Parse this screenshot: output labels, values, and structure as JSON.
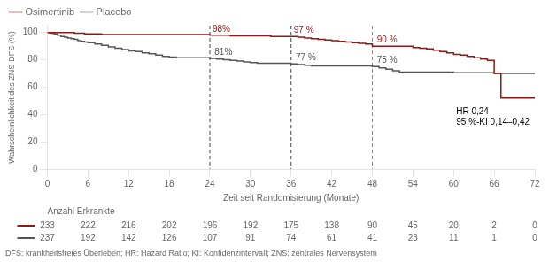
{
  "chart_data": {
    "type": "step",
    "xlabel": "Zeit seit Randomisierung (Monate)",
    "ylabel": "Wahrscheinlichkeit des ZNS-DFS (%)",
    "xlim": [
      0,
      72
    ],
    "ylim": [
      0,
      105
    ],
    "xticks": [
      0,
      6,
      12,
      18,
      24,
      30,
      36,
      42,
      48,
      54,
      60,
      66,
      72
    ],
    "yticks": [
      0,
      20,
      40,
      60,
      80,
      100
    ],
    "grid": false,
    "legend": "upper left",
    "series": [
      {
        "name": "Osimertinib",
        "color": "#8b1a1a",
        "x": [
          0,
          0.5,
          1,
          1.5,
          2,
          2.5,
          3,
          3.5,
          4,
          4.5,
          5,
          5.5,
          6,
          7,
          8,
          9,
          10,
          11,
          12,
          13,
          14,
          15,
          16,
          17,
          18,
          19,
          20,
          21,
          22,
          23,
          24,
          25,
          26,
          27,
          28,
          29,
          30,
          31,
          32,
          33,
          34,
          35,
          36,
          37,
          38,
          39,
          40,
          41,
          42,
          43,
          44,
          45,
          46,
          47,
          48,
          49,
          50,
          51,
          52,
          53,
          54,
          55,
          56,
          57,
          58,
          59,
          60,
          61,
          62,
          63,
          64,
          65,
          66,
          67,
          72
        ],
        "values": [
          100,
          100,
          100,
          100,
          100,
          100,
          100,
          100,
          99.5,
          99.5,
          99.5,
          99.0,
          99.0,
          99.0,
          98.5,
          98.5,
          98.5,
          98.5,
          98.5,
          98.5,
          98.5,
          98.5,
          98.5,
          98.5,
          98.5,
          98.5,
          98.5,
          98.5,
          98.5,
          98.5,
          98.0,
          98.0,
          98.0,
          97.5,
          97.5,
          97.5,
          97.5,
          97.5,
          97.5,
          97.0,
          97.0,
          97.0,
          97.0,
          96.5,
          96.0,
          95.5,
          95.0,
          94.5,
          94.0,
          93.5,
          93.0,
          92.5,
          92.0,
          91.5,
          90.0,
          90.0,
          90.0,
          90.0,
          90.0,
          90.0,
          89.0,
          88.5,
          88.0,
          87.0,
          86.0,
          85.0,
          84.0,
          83.5,
          82.5,
          81.5,
          80.5,
          79.5,
          70.0,
          52.0,
          52.0
        ]
      },
      {
        "name": "Placebo",
        "color": "#555555",
        "x": [
          0,
          0.5,
          1,
          1.5,
          2,
          2.5,
          3,
          3.5,
          4,
          4.5,
          5,
          5.5,
          6,
          7,
          8,
          9,
          10,
          11,
          12,
          13,
          14,
          15,
          16,
          17,
          18,
          19,
          20,
          21,
          22,
          23,
          24,
          25,
          26,
          27,
          28,
          29,
          30,
          31,
          32,
          33,
          34,
          35,
          36,
          37,
          38,
          39,
          40,
          41,
          42,
          43,
          44,
          45,
          46,
          47,
          48,
          49,
          50,
          51,
          52,
          53,
          54,
          55,
          56,
          57,
          58,
          59,
          60,
          61,
          62,
          63,
          64,
          65,
          66,
          72
        ],
        "values": [
          100,
          99.5,
          99.0,
          98.0,
          97.0,
          96.5,
          96.0,
          95.5,
          95.0,
          94.0,
          93.5,
          93.0,
          92.5,
          91.5,
          90.5,
          89.5,
          88.5,
          87.5,
          86.5,
          86.0,
          85.0,
          84.5,
          83.5,
          82.5,
          82.0,
          81.5,
          81.5,
          81.5,
          81.5,
          81.5,
          81.0,
          80.5,
          80.0,
          79.5,
          79.0,
          78.5,
          78.0,
          77.5,
          77.5,
          77.5,
          77.5,
          77.5,
          77.0,
          76.5,
          76.0,
          75.5,
          75.5,
          75.5,
          75.5,
          75.5,
          75.5,
          75.5,
          75.5,
          75.5,
          75.0,
          74.0,
          73.0,
          72.0,
          71.0,
          71.0,
          71.0,
          71.0,
          71.0,
          71.0,
          71.0,
          71.0,
          70.5,
          70.5,
          70.5,
          70.5,
          70.5,
          70.5,
          70.0,
          70.0
        ]
      }
    ],
    "vlines": [
      {
        "x": 24,
        "color": "#444444"
      },
      {
        "x": 36,
        "color": "#444444"
      },
      {
        "x": 48,
        "color": "#888888"
      }
    ],
    "annotations": [
      {
        "x": 24,
        "y": 98.5,
        "text": "98%",
        "color": "#8b1a1a"
      },
      {
        "x": 24.3,
        "y": 81.5,
        "text": "81%",
        "color": "#555555"
      },
      {
        "x": 36,
        "y": 97.5,
        "text": "97 %",
        "color": "#8b1a1a"
      },
      {
        "x": 36.3,
        "y": 77.5,
        "text": "77 %",
        "color": "#555555"
      },
      {
        "x": 48.3,
        "y": 90.5,
        "text": "90 %",
        "color": "#8b1a1a"
      },
      {
        "x": 48.3,
        "y": 75.5,
        "text": "75 %",
        "color": "#555555"
      },
      {
        "x": 60,
        "y": 30,
        "text": "HR 0,24\n95 %-KI 0,14–0,42",
        "color": "#000000"
      }
    ],
    "table": {
      "title": "Anzahl Erkrankte",
      "x": [
        0,
        6,
        12,
        18,
        24,
        30,
        36,
        42,
        48,
        54,
        60,
        66,
        72
      ],
      "rows": [
        {
          "color": "#8b1a1a",
          "values": [
            233,
            222,
            216,
            202,
            196,
            192,
            175,
            138,
            90,
            45,
            20,
            2,
            0
          ]
        },
        {
          "color": "#555555",
          "values": [
            237,
            192,
            142,
            126,
            107,
            91,
            74,
            61,
            41,
            23,
            11,
            1,
            0
          ]
        }
      ]
    },
    "footnote": "DFS: krankheitsfreies Überleben; HR: Hazard Ratio; KI: Konfidenzintervall; ZNS: zentrales Nervensystem"
  }
}
